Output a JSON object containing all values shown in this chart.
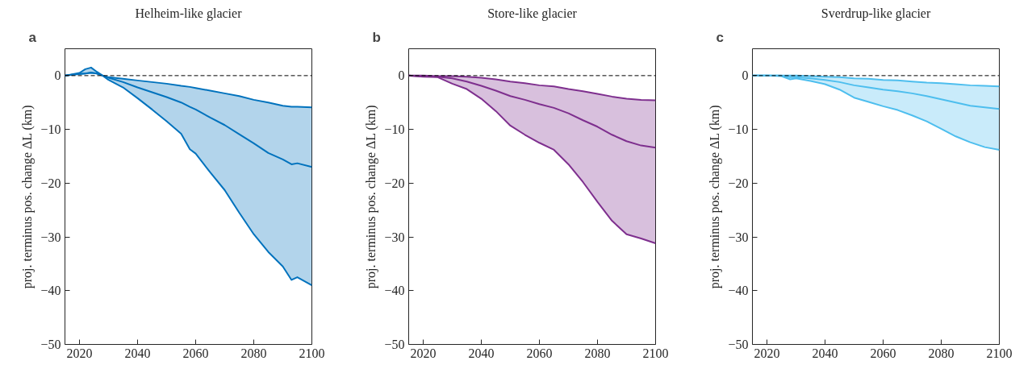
{
  "chart_data": [
    {
      "type": "line",
      "title": "Helheim-like glacier",
      "ylabel": "proj. terminus pos. change ΔL (km)",
      "annotations": [
        "a"
      ],
      "xlim": [
        2015,
        2100
      ],
      "ylim": [
        -50,
        5
      ],
      "xticks": [
        2020,
        2040,
        2060,
        2080,
        2100
      ],
      "yticks": [
        -50,
        -40,
        -30,
        -20,
        -10,
        0
      ],
      "grid": false,
      "ref_lines": [
        {
          "axis": "y",
          "value": 0,
          "label": null,
          "color": "#000000",
          "line_style": "dashed"
        }
      ],
      "x": [
        2015,
        2020,
        2022,
        2024,
        2026,
        2028,
        2030,
        2035,
        2040,
        2045,
        2050,
        2055,
        2058,
        2060,
        2065,
        2070,
        2075,
        2080,
        2085,
        2090,
        2093,
        2095,
        2100
      ],
      "series": [
        {
          "color": "#0072bd",
          "values": [
            0,
            0.3,
            0.4,
            0.6,
            0.4,
            0,
            -0.4,
            -1.2,
            -2.2,
            -3.1,
            -4.0,
            -5.0,
            -5.8,
            -6.3,
            -7.8,
            -9.2,
            -10.9,
            -12.6,
            -14.4,
            -15.6,
            -16.5,
            -16.3,
            -17.0
          ],
          "upper": [
            0,
            0.3,
            0.4,
            0.5,
            0.4,
            0,
            -0.3,
            -0.6,
            -0.9,
            -1.2,
            -1.5,
            -1.9,
            -2.1,
            -2.3,
            -2.8,
            -3.3,
            -3.8,
            -4.5,
            -5.0,
            -5.6,
            -5.8,
            -5.8,
            -5.9
          ],
          "lower": [
            0,
            0.5,
            1.2,
            1.5,
            0.7,
            0,
            -0.8,
            -2.2,
            -4.2,
            -6.3,
            -8.5,
            -10.8,
            -13.7,
            -14.5,
            -18.0,
            -21.3,
            -25.5,
            -29.5,
            -32.8,
            -35.5,
            -38.0,
            -37.5,
            -39.0
          ]
        },
        {
          "color": "#0072bd",
          "values": [
            0,
            0.3,
            0.4,
            0.5,
            0.4,
            0,
            -0.3,
            -0.6,
            -0.9,
            -1.2,
            -1.5,
            -1.9,
            -2.1,
            -2.3,
            -2.8,
            -3.3,
            -3.8,
            -4.5,
            -5.0,
            -5.6,
            -5.8,
            -5.8,
            -5.9
          ]
        },
        {
          "color": "#0072bd",
          "values": [
            0,
            0.5,
            1.2,
            1.5,
            0.7,
            0,
            -0.8,
            -2.2,
            -4.2,
            -6.3,
            -8.5,
            -10.8,
            -13.7,
            -14.5,
            -18.0,
            -21.3,
            -25.5,
            -29.5,
            -32.8,
            -35.5,
            -38.0,
            -37.5,
            -39.0
          ]
        }
      ]
    },
    {
      "type": "line",
      "title": "Store-like glacier",
      "ylabel": "proj. terminus pos. change ΔL (km)",
      "annotations": [
        "b"
      ],
      "xlim": [
        2015,
        2100
      ],
      "ylim": [
        -50,
        5
      ],
      "xticks": [
        2020,
        2040,
        2060,
        2080,
        2100
      ],
      "yticks": [
        -50,
        -40,
        -30,
        -20,
        -10,
        0
      ],
      "grid": false,
      "ref_lines": [
        {
          "axis": "y",
          "value": 0,
          "label": null,
          "color": "#000000",
          "line_style": "dashed"
        }
      ],
      "x": [
        2015,
        2020,
        2025,
        2030,
        2035,
        2040,
        2045,
        2050,
        2055,
        2060,
        2065,
        2070,
        2075,
        2080,
        2085,
        2090,
        2095,
        2100
      ],
      "series": [
        {
          "color": "#7e2f8e",
          "values": [
            0,
            -0.1,
            -0.2,
            -0.5,
            -1.1,
            -1.9,
            -2.8,
            -3.8,
            -4.5,
            -5.3,
            -6.0,
            -7.0,
            -8.3,
            -9.5,
            -11.0,
            -12.2,
            -13.0,
            -13.4
          ],
          "upper": [
            0,
            0,
            -0.1,
            -0.1,
            -0.2,
            -0.4,
            -0.7,
            -1.1,
            -1.4,
            -1.8,
            -2.0,
            -2.5,
            -2.9,
            -3.4,
            -3.9,
            -4.3,
            -4.5,
            -4.6
          ],
          "lower": [
            0,
            -0.2,
            -0.3,
            -1.5,
            -2.5,
            -4.3,
            -6.6,
            -9.3,
            -11.0,
            -12.5,
            -13.8,
            -16.5,
            -19.8,
            -23.5,
            -27.0,
            -29.5,
            -30.3,
            -31.2
          ]
        },
        {
          "color": "#7e2f8e",
          "values": [
            0,
            0,
            -0.1,
            -0.1,
            -0.2,
            -0.4,
            -0.7,
            -1.1,
            -1.4,
            -1.8,
            -2.0,
            -2.5,
            -2.9,
            -3.4,
            -3.9,
            -4.3,
            -4.5,
            -4.6
          ]
        },
        {
          "color": "#7e2f8e",
          "values": [
            0,
            -0.2,
            -0.3,
            -1.5,
            -2.5,
            -4.3,
            -6.6,
            -9.3,
            -11.0,
            -12.5,
            -13.8,
            -16.5,
            -19.8,
            -23.5,
            -27.0,
            -29.5,
            -30.3,
            -31.2
          ]
        }
      ]
    },
    {
      "type": "line",
      "title": "Sverdrup-like glacier",
      "ylabel": "proj. terminus pos. change ΔL (km)",
      "annotations": [
        "c"
      ],
      "xlim": [
        2015,
        2100
      ],
      "ylim": [
        -50,
        5
      ],
      "xticks": [
        2020,
        2040,
        2060,
        2080,
        2100
      ],
      "yticks": [
        -50,
        -40,
        -30,
        -20,
        -10,
        0
      ],
      "grid": false,
      "ref_lines": [
        {
          "axis": "y",
          "value": 0,
          "label": null,
          "color": "#000000",
          "line_style": "dashed"
        }
      ],
      "x": [
        2015,
        2020,
        2025,
        2028,
        2030,
        2035,
        2040,
        2045,
        2050,
        2055,
        2060,
        2065,
        2070,
        2075,
        2080,
        2085,
        2090,
        2095,
        2100
      ],
      "series": [
        {
          "color": "#4dbeee",
          "values": [
            0,
            0,
            0,
            -0.3,
            -0.3,
            -0.5,
            -0.8,
            -1.2,
            -1.8,
            -2.2,
            -2.6,
            -2.9,
            -3.3,
            -3.8,
            -4.4,
            -5.0,
            -5.6,
            -5.9,
            -6.2
          ],
          "upper": [
            0,
            0,
            0,
            0,
            0,
            -0.1,
            -0.2,
            -0.3,
            -0.5,
            -0.6,
            -0.8,
            -0.9,
            -1.1,
            -1.3,
            -1.4,
            -1.6,
            -1.8,
            -1.9,
            -2.0
          ],
          "lower": [
            0,
            0,
            -0.1,
            -0.7,
            -0.5,
            -1.0,
            -1.6,
            -2.6,
            -4.1,
            -4.9,
            -5.7,
            -6.4,
            -7.4,
            -8.5,
            -9.9,
            -11.3,
            -12.4,
            -13.3,
            -13.8
          ]
        },
        {
          "color": "#4dbeee",
          "values": [
            0,
            0,
            0,
            0,
            0,
            -0.1,
            -0.2,
            -0.3,
            -0.5,
            -0.6,
            -0.8,
            -0.9,
            -1.1,
            -1.3,
            -1.4,
            -1.6,
            -1.8,
            -1.9,
            -2.0
          ]
        },
        {
          "color": "#4dbeee",
          "values": [
            0,
            0,
            -0.1,
            -0.7,
            -0.5,
            -1.0,
            -1.6,
            -2.6,
            -4.1,
            -4.9,
            -5.7,
            -6.4,
            -7.4,
            -8.5,
            -9.9,
            -11.3,
            -12.4,
            -13.3,
            -13.8
          ]
        }
      ]
    }
  ]
}
